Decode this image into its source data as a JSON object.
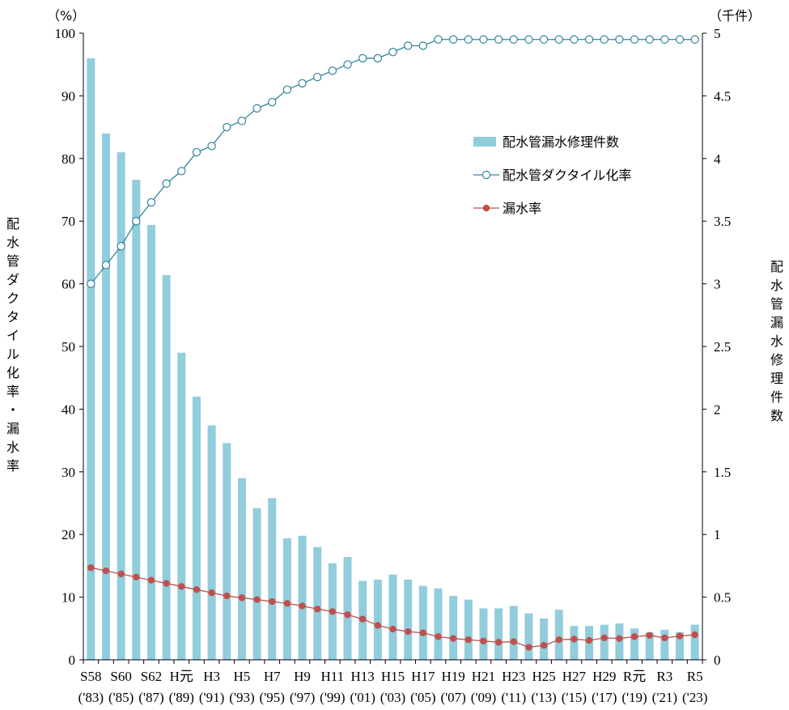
{
  "chart_data": {
    "type": "bar+line",
    "left_unit": "（%）",
    "right_unit": "（千件）",
    "ylabel_left": "配水管ダクタイル化率・漏水率",
    "ylabel_right": "配水管漏水修理件数",
    "y_left_range": [
      0,
      100
    ],
    "y_right_range": [
      0,
      5
    ],
    "y_left_ticks": [
      "0",
      "10",
      "20",
      "30",
      "40",
      "50",
      "60",
      "70",
      "80",
      "90",
      "100"
    ],
    "y_right_ticks": [
      "0",
      "0.5",
      "1",
      "1.5",
      "2",
      "2.5",
      "3",
      "3.5",
      "4",
      "4.5",
      "5"
    ],
    "x_tick_labels": [
      {
        "era": "S58",
        "year": "('83)"
      },
      {
        "era": "S60",
        "year": "('85)"
      },
      {
        "era": "S62",
        "year": "('87)"
      },
      {
        "era": "H元",
        "year": "('89)"
      },
      {
        "era": "H3",
        "year": "('91)"
      },
      {
        "era": "H5",
        "year": "('93)"
      },
      {
        "era": "H7",
        "year": "('95)"
      },
      {
        "era": "H9",
        "year": "('97)"
      },
      {
        "era": "H11",
        "year": "('99)"
      },
      {
        "era": "H13",
        "year": "('01)"
      },
      {
        "era": "H15",
        "year": "('03)"
      },
      {
        "era": "H17",
        "year": "('05)"
      },
      {
        "era": "H19",
        "year": "('07)"
      },
      {
        "era": "H21",
        "year": "('09)"
      },
      {
        "era": "H23",
        "year": "('11)"
      },
      {
        "era": "H25",
        "year": "('13)"
      },
      {
        "era": "H27",
        "year": "('15)"
      },
      {
        "era": "H29",
        "year": "('17)"
      },
      {
        "era": "R元",
        "year": "('19)"
      },
      {
        "era": "R3",
        "year": "('21)"
      },
      {
        "era": "R5",
        "year": "('23)"
      }
    ],
    "x_years": [
      1983,
      1984,
      1985,
      1986,
      1987,
      1988,
      1989,
      1990,
      1991,
      1992,
      1993,
      1994,
      1995,
      1996,
      1997,
      1998,
      1999,
      2000,
      2001,
      2002,
      2003,
      2004,
      2005,
      2006,
      2007,
      2008,
      2009,
      2010,
      2011,
      2012,
      2013,
      2014,
      2015,
      2016,
      2017,
      2018,
      2019,
      2020,
      2021,
      2022,
      2023
    ],
    "series": [
      {
        "name": "配水管漏水修理件数",
        "kind": "bar",
        "axis": "right",
        "color": "#92cddc",
        "values": [
          4.8,
          4.2,
          4.05,
          3.83,
          3.47,
          3.07,
          2.45,
          2.1,
          1.87,
          1.73,
          1.45,
          1.21,
          1.29,
          0.97,
          0.99,
          0.9,
          0.77,
          0.82,
          0.63,
          0.64,
          0.68,
          0.64,
          0.59,
          0.57,
          0.51,
          0.48,
          0.41,
          0.41,
          0.43,
          0.37,
          0.33,
          0.4,
          0.27,
          0.27,
          0.28,
          0.29,
          0.25,
          0.22,
          0.24,
          0.22,
          0.28
        ]
      },
      {
        "name": "配水管ダクタイル化率",
        "kind": "line",
        "axis": "left",
        "color": "#31849b",
        "marker": "open-circle",
        "values": [
          60,
          63,
          66,
          70,
          73,
          76,
          78,
          81,
          82,
          85,
          86,
          88,
          89,
          91,
          92,
          93,
          94,
          95,
          96,
          96,
          97,
          98,
          98,
          99,
          99,
          99,
          99,
          99,
          99,
          99,
          99,
          99,
          99,
          99,
          99,
          99,
          99,
          99,
          99,
          99,
          99
        ]
      },
      {
        "name": "漏水率",
        "kind": "line",
        "axis": "left",
        "color": "#c0504d",
        "marker": "filled-circle",
        "values": [
          14.7,
          14.2,
          13.7,
          13.2,
          12.7,
          12.2,
          11.7,
          11.2,
          10.7,
          10.2,
          9.9,
          9.6,
          9.3,
          9.0,
          8.6,
          8.1,
          7.7,
          7.2,
          6.5,
          5.5,
          4.9,
          4.5,
          4.3,
          3.7,
          3.4,
          3.2,
          3.0,
          2.8,
          2.9,
          2.0,
          2.3,
          3.2,
          3.3,
          3.1,
          3.5,
          3.4,
          3.7,
          3.9,
          3.5,
          3.8,
          4.0
        ]
      }
    ],
    "legend": [
      {
        "label": "配水管漏水修理件数",
        "kind": "bar"
      },
      {
        "label": "配水管ダクタイル化率",
        "kind": "open-circle-line"
      },
      {
        "label": "漏水率",
        "kind": "filled-circle-line"
      }
    ],
    "legend_position": "upper-right inside plot",
    "grid": false
  }
}
